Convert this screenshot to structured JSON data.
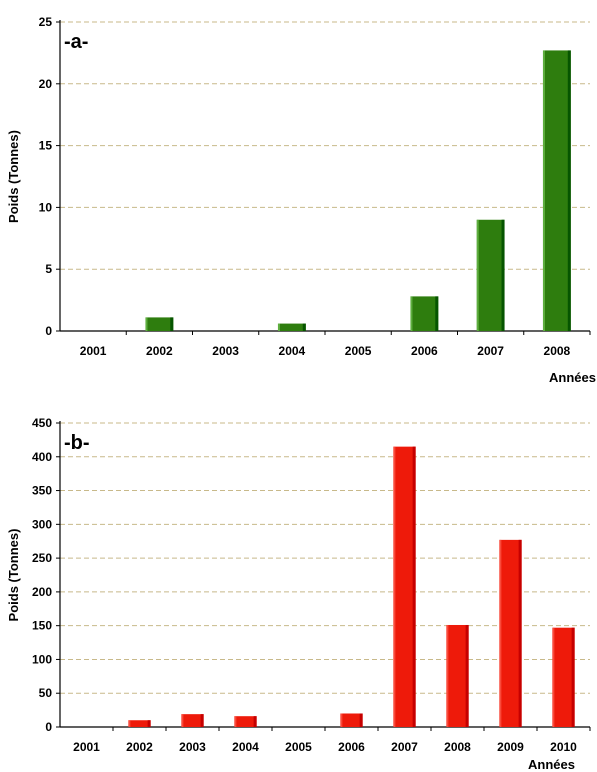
{
  "chart_data": [
    {
      "type": "bar",
      "panel_label": "-a-",
      "categories": [
        "2001",
        "2002",
        "2003",
        "2004",
        "2005",
        "2006",
        "2007",
        "2008"
      ],
      "values": [
        0,
        1.1,
        0,
        0.6,
        0,
        2.8,
        9.0,
        22.7
      ],
      "xlabel": "Années",
      "ylabel": "Poids (Tonnes)",
      "ylim": [
        0,
        25
      ],
      "yticks": [
        "0",
        "5",
        "10",
        "15",
        "20",
        "25"
      ],
      "grid": true,
      "bar_color": "#2e7d0e"
    },
    {
      "type": "bar",
      "panel_label": "-b-",
      "categories": [
        "2001",
        "2002",
        "2003",
        "2004",
        "2005",
        "2006",
        "2007",
        "2008",
        "2009",
        "2010"
      ],
      "values": [
        0,
        10,
        19,
        16,
        0,
        20,
        415,
        151,
        277,
        147
      ],
      "xlabel": "Années",
      "ylabel": "Poids (Tonnes)",
      "ylim": [
        0,
        450
      ],
      "yticks": [
        "0",
        "50",
        "100",
        "150",
        "200",
        "250",
        "300",
        "350",
        "400",
        "450"
      ],
      "grid": true,
      "bar_color": "#ee1a0a"
    }
  ]
}
